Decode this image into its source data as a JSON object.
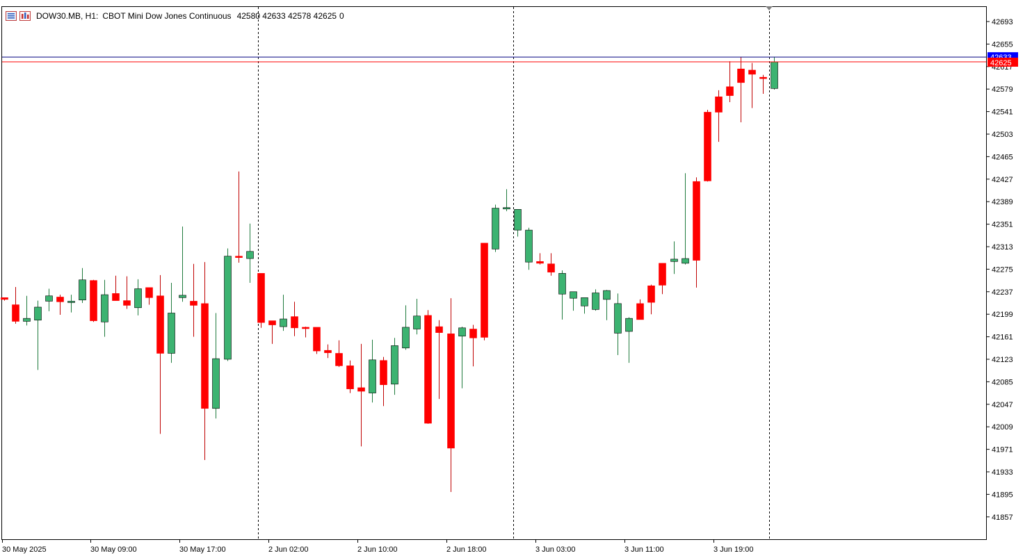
{
  "header": {
    "symbol": "DOW30.MB, H1:",
    "description": "CBOT Mini Dow Jones Continuous",
    "ohlc": "42580 42633 42578 42625",
    "volume": "0",
    "icons": [
      "list-icon",
      "chart-settings-icon"
    ]
  },
  "colors": {
    "bull": "#3cb371",
    "bear": "#ff0000",
    "bid_line": "#ff0000",
    "ask_line": "#000080",
    "ask_label_bg": "#0000ff",
    "bid_label_bg": "#ff0000"
  },
  "price_axis": {
    "labels": [
      "42693",
      "42655",
      "42617",
      "42579",
      "42541",
      "42503",
      "42465",
      "42427",
      "42389",
      "42351",
      "42313",
      "42275",
      "42237",
      "42199",
      "42161",
      "42123",
      "42085",
      "42047",
      "42009",
      "41971",
      "41933",
      "41895",
      "41857"
    ],
    "ask_label": "42633",
    "bid_label": "42625"
  },
  "time_axis": {
    "labels": [
      "30 May 2025",
      "30 May 09:00",
      "30 May 17:00",
      "2 Jun 02:00",
      "2 Jun 10:00",
      "2 Jun 18:00",
      "3 Jun 03:00",
      "3 Jun 11:00",
      "3 Jun 19:00"
    ]
  },
  "chart_data": {
    "type": "candlestick",
    "timeframe": "H1",
    "ask": 42633,
    "bid": 42625,
    "candles": [
      [
        42227,
        42227,
        42222,
        42224
      ],
      [
        42215,
        42245,
        42183,
        42187
      ],
      [
        42187,
        42230,
        42180,
        42192
      ],
      [
        42189,
        42222,
        42105,
        42211
      ],
      [
        42221,
        42242,
        42204,
        42230
      ],
      [
        42228,
        42232,
        42198,
        42220
      ],
      [
        42220,
        42232,
        42202,
        42221
      ],
      [
        42223,
        42277,
        42218,
        42257
      ],
      [
        42256,
        42257,
        42186,
        42188
      ],
      [
        42186,
        42257,
        42161,
        42232
      ],
      [
        42234,
        42264,
        42222,
        42222
      ],
      [
        42222,
        42263,
        42208,
        42214
      ],
      [
        42210,
        42258,
        42197,
        42242
      ],
      [
        42244,
        42244,
        42215,
        42227
      ],
      [
        42230,
        42265,
        41997,
        42133
      ],
      [
        42133,
        42252,
        42117,
        42201
      ],
      [
        42227,
        42347,
        42220,
        42231
      ],
      [
        42221,
        42284,
        42161,
        42214
      ],
      [
        42217,
        42287,
        41953,
        42040
      ],
      [
        42040,
        42201,
        42023,
        42124
      ],
      [
        42123,
        42310,
        42120,
        42297
      ],
      [
        42297,
        42440,
        42286,
        42296
      ],
      [
        42293,
        42352,
        42252,
        42305
      ],
      [
        42268,
        42268,
        42176,
        42185
      ],
      [
        42188,
        42188,
        42149,
        42181
      ],
      [
        42178,
        42232,
        42171,
        42191
      ],
      [
        42195,
        42220,
        42162,
        42176
      ],
      [
        42177,
        42178,
        42160,
        42176
      ],
      [
        42177,
        42177,
        42132,
        42137
      ],
      [
        42138,
        42148,
        42125,
        42134
      ],
      [
        42133,
        42155,
        42110,
        42112
      ],
      [
        42112,
        42121,
        42066,
        42073
      ],
      [
        42075,
        42149,
        41976,
        42069
      ],
      [
        42066,
        42156,
        42050,
        42122
      ],
      [
        42121,
        42127,
        42044,
        42080
      ],
      [
        42081,
        42159,
        42063,
        42146
      ],
      [
        42142,
        42214,
        42139,
        42177
      ],
      [
        42174,
        42225,
        42165,
        42196
      ],
      [
        42197,
        42206,
        42014,
        42015
      ],
      [
        42178,
        42189,
        42056,
        42168
      ],
      [
        42166,
        42226,
        41899,
        41973
      ],
      [
        42162,
        42178,
        42074,
        42176
      ],
      [
        42174,
        42181,
        42111,
        42159
      ],
      [
        42319,
        42319,
        42155,
        42160
      ],
      [
        42309,
        42384,
        42304,
        42378
      ],
      [
        42379,
        42410,
        42373,
        42379
      ],
      [
        42341,
        42376,
        42330,
        42376
      ],
      [
        42287,
        42345,
        42274,
        42341
      ],
      [
        42288,
        42302,
        42283,
        42285
      ],
      [
        42284,
        42302,
        42264,
        42270
      ],
      [
        42233,
        42273,
        42190,
        42268
      ],
      [
        42226,
        42235,
        42205,
        42237
      ],
      [
        42213,
        42226,
        42200,
        42227
      ],
      [
        42207,
        42241,
        42205,
        42235
      ],
      [
        42224,
        42240,
        42189,
        42239
      ],
      [
        42167,
        42234,
        42130,
        42217
      ],
      [
        42170,
        42194,
        42117,
        42192
      ],
      [
        42217,
        42224,
        42190,
        42190
      ],
      [
        42247,
        42249,
        42199,
        42219
      ],
      [
        42285,
        42285,
        42233,
        42248
      ],
      [
        42288,
        42322,
        42267,
        42292
      ],
      [
        42285,
        42437,
        42283,
        42293
      ],
      [
        42423,
        42430,
        42244,
        42290
      ],
      [
        42540,
        42544,
        42423,
        42424
      ],
      [
        42566,
        42577,
        42490,
        42540
      ],
      [
        42583,
        42626,
        42557,
        42568
      ],
      [
        42613,
        42633,
        42523,
        42590
      ],
      [
        42611,
        42623,
        42547,
        42604
      ],
      [
        42599,
        42603,
        42571,
        42597
      ],
      [
        42580,
        42633,
        42578,
        42625
      ]
    ]
  }
}
